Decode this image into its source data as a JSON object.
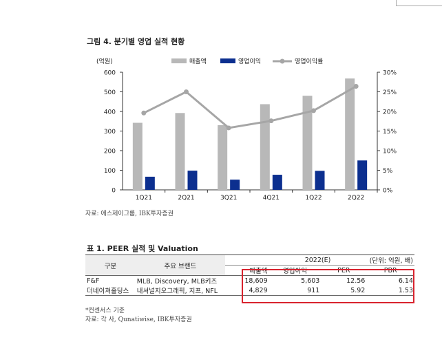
{
  "figure": {
    "title": "그림 4. 분기별 영업 실적 현황",
    "source": "자료: 에스제이그룹, IBK투자증권"
  },
  "chart_data": {
    "type": "bar",
    "title": "그림 4. 분기별 영업 실적 현황",
    "categories": [
      "1Q21",
      "2Q21",
      "3Q21",
      "4Q21",
      "1Q22",
      "2Q22"
    ],
    "series": [
      {
        "name": "매출액",
        "kind": "bar",
        "axis": "left",
        "color": "#b8b8b8",
        "values": [
          342,
          392,
          330,
          437,
          480,
          568
        ]
      },
      {
        "name": "영업이익",
        "kind": "bar",
        "axis": "left",
        "color": "#0c2f8f",
        "values": [
          67,
          98,
          52,
          77,
          97,
          150
        ]
      },
      {
        "name": "영업이익률",
        "kind": "line",
        "axis": "right",
        "color": "#a6a6a6",
        "values": [
          19.6,
          25.0,
          15.8,
          17.6,
          20.2,
          26.4
        ]
      }
    ],
    "ylabel": "(억원)",
    "ylim": [
      0,
      600
    ],
    "y_ticks": [
      "0",
      "100",
      "200",
      "300",
      "400",
      "500",
      "600"
    ],
    "y2lim": [
      0,
      30
    ],
    "y2_ticks": [
      "0%",
      "5%",
      "10%",
      "15%",
      "20%",
      "25%",
      "30%"
    ],
    "legend": "top"
  },
  "table": {
    "title": "표 1. PEER 실적 및 Valuation",
    "unit_label": "(단위: 억원, 배)",
    "col_group": "구분",
    "col_brand": "주요 브랜드",
    "year_label": "2022(E)",
    "sub_headers": [
      "매출액",
      "영업이익",
      "PER",
      "PBR"
    ],
    "rows": [
      {
        "name": "F&F",
        "brands": "MLB, Discovery, MLB키즈",
        "sales": "18,609",
        "op": "5,603",
        "per": "12.56",
        "pbr": "6.14"
      },
      {
        "name": "더네이쳐홀딩스",
        "brands": "내셔널지오그래픽, 지프, NFL",
        "sales": "4,829",
        "op": "911",
        "per": "5.92",
        "pbr": "1.53"
      }
    ],
    "note": "*컨센서스 기준",
    "source": "자료: 각 사, Qunatiwise, IBK투자증권"
  }
}
